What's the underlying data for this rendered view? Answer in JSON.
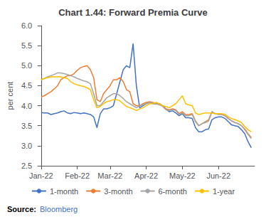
{
  "chart_data": {
    "type": "line",
    "title": "Chart 1.44: Forward Premia Curve",
    "y_label": "per cent",
    "x": [
      0,
      2,
      4,
      6,
      8,
      10,
      12,
      14,
      16,
      18,
      20,
      22,
      24,
      26,
      28,
      30,
      32,
      34,
      36,
      38,
      40,
      42,
      44,
      46,
      48,
      50,
      52,
      54,
      56,
      58,
      60,
      62,
      64,
      66,
      68,
      70,
      72,
      74,
      76,
      78,
      80,
      82,
      84,
      86,
      88,
      90,
      92,
      94,
      96,
      98,
      100,
      102,
      104,
      106,
      108,
      110,
      112,
      114,
      116,
      118,
      120,
      122,
      124,
      126,
      128
    ],
    "series": [
      {
        "name": "1-month",
        "color": "#4472c4",
        "values": [
          3.83,
          3.82,
          3.82,
          3.78,
          3.8,
          3.82,
          3.85,
          3.87,
          3.82,
          3.8,
          3.83,
          3.82,
          3.8,
          3.82,
          3.8,
          3.78,
          3.72,
          3.45,
          3.8,
          3.92,
          3.92,
          3.95,
          4.0,
          4.3,
          4.6,
          4.9,
          5.0,
          4.95,
          5.55,
          4.5,
          3.95,
          4.0,
          4.05,
          4.08,
          4.05,
          4.05,
          4.05,
          4.0,
          3.92,
          3.85,
          3.87,
          3.82,
          3.75,
          3.8,
          3.7,
          3.7,
          3.68,
          3.45,
          3.35,
          3.35,
          3.4,
          3.42,
          3.65,
          3.7,
          3.72,
          3.72,
          3.68,
          3.6,
          3.52,
          3.5,
          3.48,
          3.4,
          3.3,
          3.1,
          2.95
        ]
      },
      {
        "name": "3-month",
        "color": "#ed7d31",
        "values": [
          4.22,
          4.25,
          4.3,
          4.35,
          4.42,
          4.5,
          4.65,
          4.7,
          4.75,
          4.75,
          4.8,
          4.88,
          4.95,
          4.98,
          5.0,
          4.9,
          4.7,
          4.15,
          4.1,
          4.3,
          4.4,
          4.5,
          4.65,
          4.65,
          4.7,
          4.6,
          4.4,
          4.35,
          4.05,
          4.0,
          4.0,
          4.05,
          4.08,
          4.1,
          4.08,
          4.05,
          4.05,
          4.0,
          3.92,
          3.9,
          3.92,
          3.9,
          3.8,
          3.85,
          3.78,
          3.78,
          3.8,
          3.62,
          3.5,
          3.55,
          3.6,
          3.65,
          3.85,
          3.8,
          3.8,
          3.78,
          3.75,
          3.68,
          3.62,
          3.58,
          3.55,
          3.5,
          3.42,
          3.3,
          3.2
        ]
      },
      {
        "name": "6-month",
        "color": "#a5a5a5",
        "values": [
          4.65,
          4.68,
          4.72,
          4.75,
          4.78,
          4.82,
          4.82,
          4.8,
          4.78,
          4.75,
          4.72,
          4.68,
          4.65,
          4.62,
          4.6,
          4.55,
          4.3,
          4.0,
          4.0,
          4.1,
          4.2,
          4.25,
          4.3,
          4.3,
          4.25,
          4.18,
          4.1,
          4.05,
          4.0,
          3.95,
          4.0,
          4.02,
          4.05,
          4.08,
          4.05,
          4.05,
          4.02,
          3.98,
          3.9,
          3.88,
          3.9,
          3.88,
          3.78,
          3.82,
          3.75,
          3.75,
          3.78,
          3.6,
          3.5,
          3.55,
          3.58,
          3.62,
          3.85,
          3.8,
          3.78,
          3.78,
          3.75,
          3.68,
          3.62,
          3.58,
          3.55,
          3.5,
          3.4,
          3.28,
          3.18
        ]
      },
      {
        "name": "1-year",
        "color": "#ffc000",
        "values": [
          4.65,
          4.68,
          4.7,
          4.72,
          4.72,
          4.72,
          4.72,
          4.7,
          4.68,
          4.6,
          4.55,
          4.52,
          4.5,
          4.48,
          4.45,
          4.4,
          4.15,
          3.95,
          3.98,
          4.05,
          4.1,
          4.12,
          4.15,
          4.15,
          4.12,
          4.05,
          3.98,
          3.95,
          3.92,
          3.88,
          3.92,
          3.95,
          4.0,
          4.05,
          4.05,
          4.08,
          4.05,
          4.0,
          3.98,
          3.95,
          4.0,
          4.05,
          4.15,
          4.25,
          4.05,
          4.02,
          4.0,
          3.82,
          3.78,
          3.8,
          3.82,
          3.82,
          3.82,
          3.8,
          3.8,
          3.8,
          3.78,
          3.72,
          3.68,
          3.65,
          3.62,
          3.58,
          3.48,
          3.4,
          3.35
        ]
      }
    ],
    "xlim": [
      -2,
      130
    ],
    "xticks": [
      {
        "value": 0,
        "label": "Jan-22"
      },
      {
        "value": 22,
        "label": "Feb-22"
      },
      {
        "value": 42,
        "label": "Mar-22"
      },
      {
        "value": 64,
        "label": "Apr-22"
      },
      {
        "value": 86,
        "label": "May-22"
      },
      {
        "value": 108,
        "label": "Jun-22"
      }
    ],
    "ylim": [
      2.5,
      6.0
    ],
    "yticks": [
      2.5,
      {
        "value": 3.0,
        "label": "3.0"
      },
      3.5,
      {
        "value": 4.0,
        "label": "4.0"
      },
      4.5,
      {
        "value": 5.0,
        "label": "5.0"
      },
      5.5,
      {
        "value": 6.0,
        "label": "6.0"
      }
    ],
    "grid": false,
    "legend": "bottom",
    "annotations": [
      {
        "text": "Source:",
        "color": "#000000"
      },
      {
        "text": "Bloomberg",
        "color": "#4472c4"
      }
    ]
  }
}
